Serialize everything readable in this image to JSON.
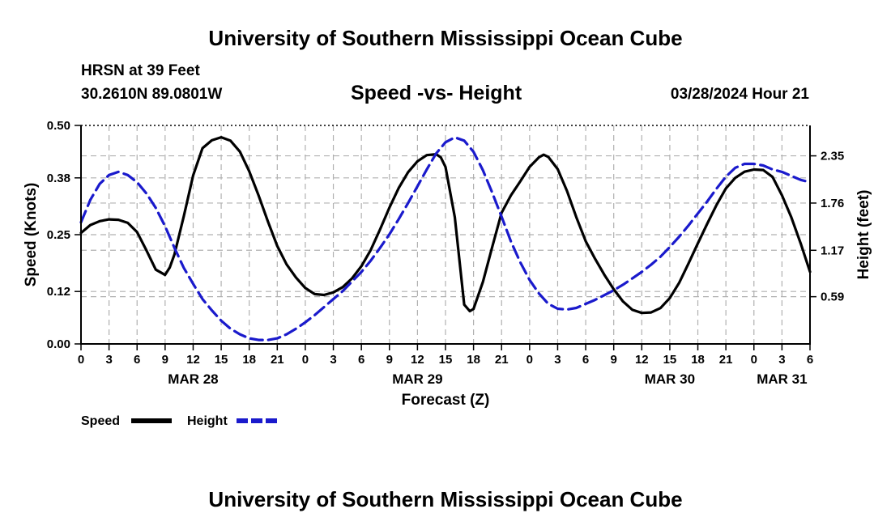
{
  "header": {
    "title_top": "University of Southern Mississippi Ocean Cube",
    "title_bottom": "University of Southern Mississippi Ocean Cube",
    "station": "HRSN at 39 Feet",
    "coordinates": "30.2610N  89.0801W",
    "plot_title": "Speed -vs- Height",
    "datetime": "03/28/2024 Hour 21"
  },
  "colors": {
    "speed": "#000000",
    "height": "#1a1acc",
    "grid": "#b0b0b0"
  },
  "chart_data": {
    "type": "line",
    "title": "Speed -vs- Height",
    "xlabel": "Forecast (Z)",
    "ylabel_left": "Speed (Knots)",
    "ylabel_right": "Height (feet)",
    "x_unit": "hours since MAR 28 00Z",
    "xlim": [
      0,
      78
    ],
    "ylim_left": [
      0,
      0.5
    ],
    "ylim_right": [
      0.0,
      2.73
    ],
    "x_tick_values": [
      0,
      3,
      6,
      9,
      12,
      15,
      18,
      21,
      24,
      27,
      30,
      33,
      36,
      39,
      42,
      45,
      48,
      51,
      54,
      57,
      60,
      63,
      66,
      69,
      72,
      75,
      78
    ],
    "x_tick_labels": [
      "0",
      "3",
      "6",
      "9",
      "12",
      "15",
      "18",
      "21",
      "0",
      "3",
      "6",
      "9",
      "12",
      "15",
      "18",
      "21",
      "0",
      "3",
      "6",
      "9",
      "12",
      "15",
      "18",
      "21",
      "0",
      "3",
      "6"
    ],
    "y_left_ticks": [
      0.0,
      0.12,
      0.25,
      0.38,
      0.5
    ],
    "y_left_tick_labels": [
      "0.00",
      "0.12",
      "0.25",
      "0.38",
      "0.50"
    ],
    "y_right_ticks": [
      0.59,
      1.17,
      1.76,
      2.35
    ],
    "y_right_tick_labels": [
      "0.59",
      "1.17",
      "1.76",
      "2.35"
    ],
    "dates": [
      {
        "label": "MAR 28",
        "x": 12
      },
      {
        "label": "MAR 29",
        "x": 36
      },
      {
        "label": "MAR 30",
        "x": 63
      },
      {
        "label": "MAR 31",
        "x": 75
      }
    ],
    "series": [
      {
        "name": "Speed",
        "axis": "left",
        "style": "solid",
        "points": [
          [
            0,
            0.254
          ],
          [
            1,
            0.272
          ],
          [
            2,
            0.281
          ],
          [
            3,
            0.285
          ],
          [
            4,
            0.284
          ],
          [
            5,
            0.277
          ],
          [
            6,
            0.256
          ],
          [
            7,
            0.214
          ],
          [
            8,
            0.17
          ],
          [
            9,
            0.158
          ],
          [
            9.5,
            0.175
          ],
          [
            10,
            0.205
          ],
          [
            11,
            0.292
          ],
          [
            12,
            0.386
          ],
          [
            13,
            0.448
          ],
          [
            14,
            0.466
          ],
          [
            15,
            0.473
          ],
          [
            16,
            0.465
          ],
          [
            17,
            0.44
          ],
          [
            18,
            0.395
          ],
          [
            19,
            0.34
          ],
          [
            20,
            0.28
          ],
          [
            21,
            0.224
          ],
          [
            22,
            0.182
          ],
          [
            23,
            0.152
          ],
          [
            24,
            0.128
          ],
          [
            25,
            0.114
          ],
          [
            26,
            0.112
          ],
          [
            27,
            0.118
          ],
          [
            28,
            0.13
          ],
          [
            29,
            0.15
          ],
          [
            30,
            0.178
          ],
          [
            31,
            0.215
          ],
          [
            32,
            0.262
          ],
          [
            33,
            0.312
          ],
          [
            34,
            0.357
          ],
          [
            35,
            0.393
          ],
          [
            36,
            0.418
          ],
          [
            37,
            0.432
          ],
          [
            38,
            0.434
          ],
          [
            38.5,
            0.427
          ],
          [
            39,
            0.405
          ],
          [
            40,
            0.29
          ],
          [
            41,
            0.09
          ],
          [
            41.6,
            0.075
          ],
          [
            42,
            0.08
          ],
          [
            43,
            0.142
          ],
          [
            44,
            0.222
          ],
          [
            45,
            0.3
          ],
          [
            46,
            0.34
          ],
          [
            47,
            0.372
          ],
          [
            48,
            0.405
          ],
          [
            49,
            0.427
          ],
          [
            49.5,
            0.433
          ],
          [
            50,
            0.428
          ],
          [
            51,
            0.4
          ],
          [
            52,
            0.35
          ],
          [
            53,
            0.29
          ],
          [
            54,
            0.235
          ],
          [
            55,
            0.195
          ],
          [
            56,
            0.158
          ],
          [
            57,
            0.125
          ],
          [
            58,
            0.097
          ],
          [
            59,
            0.078
          ],
          [
            60,
            0.071
          ],
          [
            61,
            0.072
          ],
          [
            62,
            0.082
          ],
          [
            63,
            0.105
          ],
          [
            64,
            0.14
          ],
          [
            65,
            0.184
          ],
          [
            66,
            0.23
          ],
          [
            67,
            0.275
          ],
          [
            68,
            0.318
          ],
          [
            69,
            0.356
          ],
          [
            70,
            0.38
          ],
          [
            71,
            0.394
          ],
          [
            72,
            0.399
          ],
          [
            73,
            0.398
          ],
          [
            74,
            0.382
          ],
          [
            75,
            0.34
          ],
          [
            76,
            0.29
          ],
          [
            77,
            0.23
          ],
          [
            78,
            0.165
          ]
        ]
      },
      {
        "name": "Height",
        "axis": "right",
        "style": "dashed",
        "points": [
          [
            0,
            1.52
          ],
          [
            1,
            1.8
          ],
          [
            2,
            2.0
          ],
          [
            3,
            2.11
          ],
          [
            4,
            2.15
          ],
          [
            5,
            2.11
          ],
          [
            6,
            2.02
          ],
          [
            7,
            1.88
          ],
          [
            8,
            1.7
          ],
          [
            9,
            1.47
          ],
          [
            10,
            1.2
          ],
          [
            11,
            0.95
          ],
          [
            12,
            0.75
          ],
          [
            13,
            0.56
          ],
          [
            14,
            0.42
          ],
          [
            15,
            0.29
          ],
          [
            16,
            0.19
          ],
          [
            17,
            0.12
          ],
          [
            18,
            0.07
          ],
          [
            19,
            0.05
          ],
          [
            20,
            0.05
          ],
          [
            21,
            0.07
          ],
          [
            22,
            0.12
          ],
          [
            23,
            0.19
          ],
          [
            24,
            0.27
          ],
          [
            25,
            0.36
          ],
          [
            26,
            0.46
          ],
          [
            27,
            0.56
          ],
          [
            28,
            0.66
          ],
          [
            29,
            0.78
          ],
          [
            30,
            0.9
          ],
          [
            31,
            1.04
          ],
          [
            32,
            1.2
          ],
          [
            33,
            1.37
          ],
          [
            34,
            1.56
          ],
          [
            35,
            1.76
          ],
          [
            36,
            1.97
          ],
          [
            37,
            2.18
          ],
          [
            38,
            2.38
          ],
          [
            39,
            2.52
          ],
          [
            40,
            2.58
          ],
          [
            41,
            2.54
          ],
          [
            42,
            2.4
          ],
          [
            43,
            2.17
          ],
          [
            44,
            1.89
          ],
          [
            45,
            1.59
          ],
          [
            46,
            1.28
          ],
          [
            47,
            1.02
          ],
          [
            48,
            0.8
          ],
          [
            49,
            0.63
          ],
          [
            50,
            0.5
          ],
          [
            51,
            0.44
          ],
          [
            52,
            0.43
          ],
          [
            53,
            0.45
          ],
          [
            54,
            0.5
          ],
          [
            55,
            0.55
          ],
          [
            56,
            0.61
          ],
          [
            57,
            0.67
          ],
          [
            58,
            0.74
          ],
          [
            59,
            0.82
          ],
          [
            60,
            0.9
          ],
          [
            61,
            0.99
          ],
          [
            62,
            1.09
          ],
          [
            63,
            1.21
          ],
          [
            64,
            1.34
          ],
          [
            65,
            1.48
          ],
          [
            66,
            1.63
          ],
          [
            67,
            1.78
          ],
          [
            68,
            1.94
          ],
          [
            69,
            2.09
          ],
          [
            70,
            2.2
          ],
          [
            71,
            2.25
          ],
          [
            72,
            2.25
          ],
          [
            73,
            2.23
          ],
          [
            74,
            2.18
          ],
          [
            75,
            2.15
          ],
          [
            76,
            2.1
          ],
          [
            77,
            2.05
          ],
          [
            78,
            2.02
          ]
        ]
      }
    ],
    "legend": [
      {
        "label": "Speed",
        "series": "Speed"
      },
      {
        "label": "Height",
        "series": "Height"
      }
    ],
    "legend_position": "bottom-left"
  }
}
